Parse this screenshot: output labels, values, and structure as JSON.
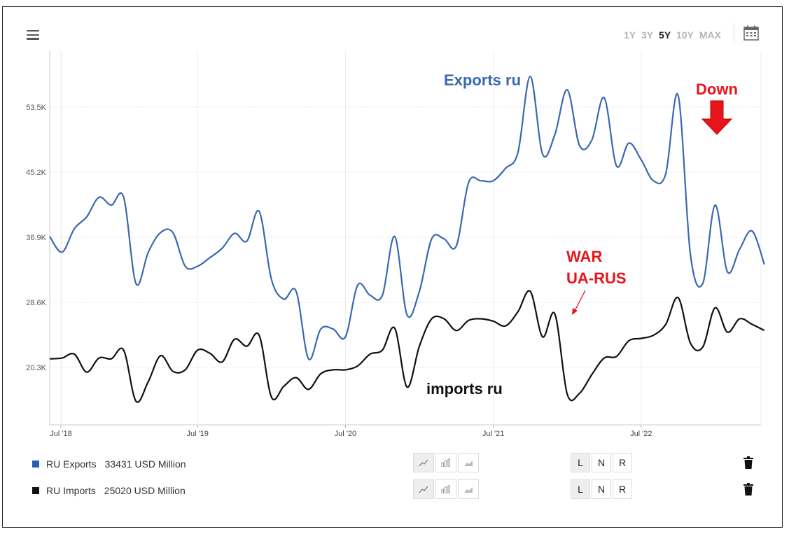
{
  "header": {
    "ranges": [
      "1Y",
      "3Y",
      "5Y",
      "10Y",
      "MAX"
    ],
    "active_range": "5Y"
  },
  "colors": {
    "exports": "#3a69b0",
    "imports": "#111111",
    "annotation_red": "#e8141c",
    "legend_exports": "#1f5fb4",
    "legend_imports": "#111111"
  },
  "legend": [
    {
      "name": "RU Exports",
      "value": "33431 USD Million",
      "active_type": "line",
      "active_scale": "L"
    },
    {
      "name": "RU Imports",
      "value": "25020 USD Million",
      "active_type": "line",
      "active_scale": "L"
    }
  ],
  "scale_buttons": [
    "L",
    "N",
    "R"
  ],
  "annotations": {
    "exports_label": "Exports ru",
    "imports_label": "imports ru",
    "war_line1": "WAR",
    "war_line2": "UA-RUS",
    "down_label": "Down"
  },
  "chart_data": {
    "type": "line",
    "x_ticks": [
      "Jul '18",
      "Jul '19",
      "Jul '20",
      "Jul '21",
      "Jul '22"
    ],
    "y_ticks": [
      "20.3K",
      "28.6K",
      "36.9K",
      "45.2K",
      "53.5K"
    ],
    "y_tick_values": [
      20300,
      28600,
      36900,
      45200,
      53500
    ],
    "x_range": [
      "2018-07",
      "2023-05"
    ],
    "grid": true,
    "series": [
      {
        "name": "RU Exports",
        "x": [
          "2018-07",
          "2018-08",
          "2018-09",
          "2018-10",
          "2018-11",
          "2018-12",
          "2019-01",
          "2019-02",
          "2019-03",
          "2019-04",
          "2019-05",
          "2019-06",
          "2019-07",
          "2019-08",
          "2019-09",
          "2019-10",
          "2019-11",
          "2019-12",
          "2020-01",
          "2020-02",
          "2020-03",
          "2020-04",
          "2020-05",
          "2020-06",
          "2020-07",
          "2020-08",
          "2020-09",
          "2020-10",
          "2020-11",
          "2020-12",
          "2021-01",
          "2021-02",
          "2021-03",
          "2021-04",
          "2021-05",
          "2021-06",
          "2021-07",
          "2021-08",
          "2021-09",
          "2021-10",
          "2021-11",
          "2021-12",
          "2022-01",
          "2022-02",
          "2022-03",
          "2022-04",
          "2022-05",
          "2022-06",
          "2022-07",
          "2022-08",
          "2022-09",
          "2022-10",
          "2022-11",
          "2022-12",
          "2023-01",
          "2023-02",
          "2023-03",
          "2023-04",
          "2023-05"
        ],
        "values": [
          37000,
          35000,
          38000,
          39500,
          42000,
          41000,
          42000,
          31000,
          35000,
          37500,
          37500,
          33200,
          33200,
          34300,
          35500,
          37400,
          36400,
          40200,
          31500,
          29000,
          30000,
          21400,
          25200,
          25200,
          24200,
          30800,
          29500,
          29500,
          37000,
          27000,
          30000,
          36700,
          36700,
          35800,
          43900,
          44100,
          44100,
          45700,
          47700,
          57400,
          47500,
          50000,
          55700,
          48600,
          49300,
          54700,
          46000,
          48900,
          46800,
          44100,
          45000,
          55000,
          34700,
          31000,
          41000,
          32500,
          35400,
          37700,
          33431
        ]
      },
      {
        "name": "RU Imports",
        "x": [
          "2018-07",
          "2018-08",
          "2018-09",
          "2018-10",
          "2018-11",
          "2018-12",
          "2019-01",
          "2019-02",
          "2019-03",
          "2019-04",
          "2019-05",
          "2019-06",
          "2019-07",
          "2019-08",
          "2019-09",
          "2019-10",
          "2019-11",
          "2019-12",
          "2020-01",
          "2020-02",
          "2020-03",
          "2020-04",
          "2020-05",
          "2020-06",
          "2020-07",
          "2020-08",
          "2020-09",
          "2020-10",
          "2020-11",
          "2020-12",
          "2021-01",
          "2021-02",
          "2021-03",
          "2021-04",
          "2021-05",
          "2021-06",
          "2021-07",
          "2021-08",
          "2021-09",
          "2021-10",
          "2021-11",
          "2021-12",
          "2022-01",
          "2022-02",
          "2022-03",
          "2022-04",
          "2022-05",
          "2022-06",
          "2022-07",
          "2022-08",
          "2022-09",
          "2022-10",
          "2022-11",
          "2022-12",
          "2023-01",
          "2023-02",
          "2023-03",
          "2023-04",
          "2023-05"
        ],
        "values": [
          21400,
          21500,
          22000,
          19700,
          21500,
          21400,
          22500,
          16000,
          18500,
          21800,
          19800,
          20000,
          22500,
          22100,
          21000,
          23900,
          23000,
          24400,
          16500,
          17900,
          19000,
          17500,
          19500,
          20000,
          20000,
          20500,
          22000,
          22500,
          25300,
          17800,
          23000,
          26500,
          26500,
          25000,
          26300,
          26500,
          26200,
          25600,
          27400,
          30000,
          24200,
          27100,
          16900,
          17000,
          19400,
          21500,
          21700,
          23700,
          24000,
          24400,
          25800,
          29200,
          23400,
          22900,
          27900,
          24800,
          26500,
          25800,
          25020
        ]
      }
    ]
  }
}
